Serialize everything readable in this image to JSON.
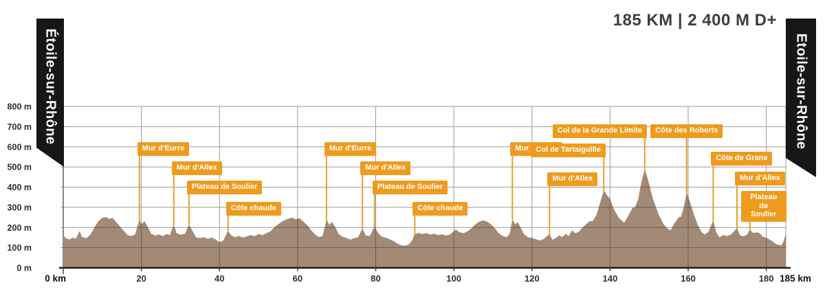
{
  "header": {
    "stats": "185 KM | 2 400 M D+"
  },
  "banners": {
    "start": "Étoile-sur-Rhône",
    "finish": "Etoile-sur-Rhône"
  },
  "chart_data": {
    "type": "area",
    "xlabel": "km",
    "ylabel": "m",
    "x_range": [
      0,
      185
    ],
    "y_range": [
      0,
      800
    ],
    "grid": true,
    "x_ticks": [
      {
        "v": 0,
        "label": "0 km",
        "bold": true
      },
      {
        "v": 20,
        "label": "20"
      },
      {
        "v": 40,
        "label": "40"
      },
      {
        "v": 60,
        "label": "60"
      },
      {
        "v": 80,
        "label": "80"
      },
      {
        "v": 100,
        "label": "100"
      },
      {
        "v": 120,
        "label": "120"
      },
      {
        "v": 140,
        "label": "140"
      },
      {
        "v": 160,
        "label": "160"
      },
      {
        "v": 180,
        "label": "180"
      },
      {
        "v": 185,
        "label": "185 km",
        "bold": true
      }
    ],
    "y_ticks": [
      {
        "v": 800,
        "label": "800 m"
      },
      {
        "v": 700,
        "label": "700 m"
      },
      {
        "v": 600,
        "label": "600 m"
      },
      {
        "v": 500,
        "label": "500 m"
      },
      {
        "v": 400,
        "label": "400 m"
      },
      {
        "v": 300,
        "label": "300 m"
      },
      {
        "v": 200,
        "label": "200 m"
      },
      {
        "v": 100,
        "label": "100 m"
      },
      {
        "v": 0,
        "label": "0 m"
      }
    ],
    "colors": {
      "terrain": "#a38a76",
      "grid": "#999999",
      "grid_on_terrain": "#6f5a49",
      "axis": "#1c1c1c",
      "tick_text": "#2e2e2e",
      "label_bg": "#ee9b1e",
      "label_line": "#e7a02e",
      "header_text": "#3a3f45",
      "banner_bg": "#171717"
    },
    "profile": [
      [
        0,
        160
      ],
      [
        0.8,
        146
      ],
      [
        1.6,
        141
      ],
      [
        2.4,
        150
      ],
      [
        3.2,
        144
      ],
      [
        4.2,
        183
      ],
      [
        4.8,
        152
      ],
      [
        6,
        148
      ],
      [
        7,
        166
      ],
      [
        8,
        200
      ],
      [
        9,
        232
      ],
      [
        10,
        248
      ],
      [
        11,
        252
      ],
      [
        11.8,
        242
      ],
      [
        12.6,
        248
      ],
      [
        13.5,
        228
      ],
      [
        14.5,
        205
      ],
      [
        15.5,
        183
      ],
      [
        16.5,
        162
      ],
      [
        17.5,
        158
      ],
      [
        18.4,
        166
      ],
      [
        19,
        205
      ],
      [
        19.5,
        242
      ],
      [
        20,
        216
      ],
      [
        20.8,
        231
      ],
      [
        21.6,
        204
      ],
      [
        22.5,
        170
      ],
      [
        23.5,
        160
      ],
      [
        24.5,
        166
      ],
      [
        25.5,
        158
      ],
      [
        26.5,
        168
      ],
      [
        27.3,
        163
      ],
      [
        28.3,
        214
      ],
      [
        29,
        172
      ],
      [
        30,
        164
      ],
      [
        31.2,
        170
      ],
      [
        32.2,
        214
      ],
      [
        33,
        186
      ],
      [
        34,
        151
      ],
      [
        35,
        147
      ],
      [
        36,
        152
      ],
      [
        37,
        144
      ],
      [
        38,
        150
      ],
      [
        39,
        141
      ],
      [
        40,
        127
      ],
      [
        41,
        136
      ],
      [
        42.2,
        184
      ],
      [
        43,
        161
      ],
      [
        44,
        152
      ],
      [
        45,
        158
      ],
      [
        46,
        150
      ],
      [
        47,
        156
      ],
      [
        48,
        163
      ],
      [
        49,
        157
      ],
      [
        50,
        168
      ],
      [
        51,
        162
      ],
      [
        52,
        172
      ],
      [
        53,
        180
      ],
      [
        54,
        200
      ],
      [
        55,
        216
      ],
      [
        56,
        229
      ],
      [
        57,
        239
      ],
      [
        58.5,
        249
      ],
      [
        59.5,
        241
      ],
      [
        60.5,
        246
      ],
      [
        61.5,
        229
      ],
      [
        62.5,
        211
      ],
      [
        63.5,
        186
      ],
      [
        64.5,
        165
      ],
      [
        65.6,
        152
      ],
      [
        66.4,
        159
      ],
      [
        67,
        205
      ],
      [
        67.4,
        242
      ],
      [
        68.1,
        213
      ],
      [
        68.8,
        227
      ],
      [
        69.6,
        204
      ],
      [
        70.5,
        168
      ],
      [
        71.5,
        154
      ],
      [
        72.5,
        148
      ],
      [
        73.5,
        140
      ],
      [
        74.5,
        147
      ],
      [
        75.5,
        152
      ],
      [
        76.6,
        196
      ],
      [
        77.4,
        161
      ],
      [
        78.5,
        158
      ],
      [
        79.7,
        206
      ],
      [
        80.5,
        176
      ],
      [
        81.5,
        155
      ],
      [
        82.5,
        150
      ],
      [
        83.5,
        142
      ],
      [
        84.5,
        134
      ],
      [
        85.5,
        121
      ],
      [
        86.5,
        112
      ],
      [
        87.5,
        110
      ],
      [
        88.5,
        116
      ],
      [
        89.3,
        136
      ],
      [
        90,
        168
      ],
      [
        91,
        173
      ],
      [
        92,
        168
      ],
      [
        93,
        172
      ],
      [
        94,
        165
      ],
      [
        95,
        169
      ],
      [
        96,
        162
      ],
      [
        97,
        166
      ],
      [
        98,
        160
      ],
      [
        99,
        165
      ],
      [
        100.5,
        190
      ],
      [
        101.5,
        176
      ],
      [
        102.5,
        172
      ],
      [
        103.5,
        181
      ],
      [
        104.5,
        196
      ],
      [
        105.5,
        216
      ],
      [
        106.5,
        229
      ],
      [
        107.5,
        236
      ],
      [
        108.5,
        229
      ],
      [
        109.5,
        216
      ],
      [
        110.5,
        196
      ],
      [
        111.5,
        172
      ],
      [
        112.5,
        158
      ],
      [
        113.5,
        152
      ],
      [
        114.3,
        168
      ],
      [
        115,
        240
      ],
      [
        115.7,
        216
      ],
      [
        116.4,
        226
      ],
      [
        117.2,
        196
      ],
      [
        118,
        166
      ],
      [
        119,
        152
      ],
      [
        120,
        148
      ],
      [
        121,
        142
      ],
      [
        122,
        136
      ],
      [
        123,
        143
      ],
      [
        124.5,
        168
      ],
      [
        125.2,
        139
      ],
      [
        126,
        146
      ],
      [
        127,
        161
      ],
      [
        127.8,
        152
      ],
      [
        128.6,
        168
      ],
      [
        129.4,
        158
      ],
      [
        130.3,
        186
      ],
      [
        131.1,
        171
      ],
      [
        132,
        179
      ],
      [
        133,
        201
      ],
      [
        134,
        219
      ],
      [
        134.8,
        232
      ],
      [
        135.5,
        230
      ],
      [
        136.5,
        261
      ],
      [
        137.4,
        320
      ],
      [
        138.4,
        385
      ],
      [
        139.2,
        361
      ],
      [
        139.9,
        344
      ],
      [
        141,
        291
      ],
      [
        142.2,
        249
      ],
      [
        143.6,
        224
      ],
      [
        144.8,
        263
      ],
      [
        145.7,
        296
      ],
      [
        146.4,
        301
      ],
      [
        147.2,
        341
      ],
      [
        148,
        422
      ],
      [
        148.9,
        492
      ],
      [
        149.8,
        431
      ],
      [
        151,
        341
      ],
      [
        152.4,
        266
      ],
      [
        153.7,
        216
      ],
      [
        154.8,
        193
      ],
      [
        155.5,
        186
      ],
      [
        156.5,
        222
      ],
      [
        157.6,
        251
      ],
      [
        158.2,
        254
      ],
      [
        159,
        311
      ],
      [
        159.6,
        375
      ],
      [
        160.4,
        331
      ],
      [
        161.4,
        269
      ],
      [
        162.4,
        216
      ],
      [
        163.4,
        178
      ],
      [
        164.2,
        165
      ],
      [
        165.2,
        178
      ],
      [
        166.4,
        235
      ],
      [
        167.2,
        176
      ],
      [
        168,
        151
      ],
      [
        169,
        163
      ],
      [
        170,
        158
      ],
      [
        171,
        166
      ],
      [
        172,
        186
      ],
      [
        172.5,
        200
      ],
      [
        173.2,
        163
      ],
      [
        174,
        156
      ],
      [
        175,
        163
      ],
      [
        175.8,
        190
      ],
      [
        176.6,
        173
      ],
      [
        177.5,
        176
      ],
      [
        178.3,
        172
      ],
      [
        179,
        156
      ],
      [
        180,
        149
      ],
      [
        180.8,
        141
      ],
      [
        181.6,
        132
      ],
      [
        182.4,
        118
      ],
      [
        183.2,
        114
      ],
      [
        183.9,
        112
      ],
      [
        184.4,
        131
      ],
      [
        185,
        168
      ]
    ],
    "climbs": [
      {
        "name": "Mur d'Eurre",
        "km": 19.5,
        "top": 207,
        "attach": "left"
      },
      {
        "name": "Mur d'Allex",
        "km": 28.3,
        "top": 235,
        "attach": "left"
      },
      {
        "name": "Plateau de Soulier",
        "km": 32.2,
        "top": 263,
        "attach": "left"
      },
      {
        "name": "Côte chaude",
        "km": 42.2,
        "top": 294,
        "attach": "left"
      },
      {
        "name": "Mur d'Eurre",
        "km": 67.4,
        "top": 207,
        "attach": "left"
      },
      {
        "name": "Mur d'Allex",
        "km": 76.6,
        "top": 235,
        "attach": "left"
      },
      {
        "name": "Plateau de Soulier",
        "km": 79.7,
        "top": 263,
        "attach": "left"
      },
      {
        "name": "Côte chaude",
        "km": 90,
        "top": 294,
        "attach": "left"
      },
      {
        "name": "Mur d'Eurre",
        "km": 115,
        "top": 207,
        "attach": "left"
      },
      {
        "name": "Mur d'Allex",
        "km": 124.5,
        "top": 251,
        "attach": "left"
      },
      {
        "name": "Col de Tartaiguille",
        "km": 138.4,
        "top": 209,
        "attach": "right"
      },
      {
        "name": "Col de la Grande Limite",
        "km": 148.9,
        "top": 181,
        "attach": "right"
      },
      {
        "name": "Côte des Roberts",
        "km": 159.6,
        "top": 181,
        "attach": "center"
      },
      {
        "name": "Côte de Grane",
        "km": 166.4,
        "top": 221,
        "attach": "left"
      },
      {
        "name": "Mur d'Allex",
        "km": 172.5,
        "top": 250,
        "attach": "left"
      },
      {
        "name": "Plateau de Soulier",
        "km": 175.8,
        "top": 278,
        "attach": "left",
        "dx": -10,
        "two_line": true
      }
    ]
  }
}
